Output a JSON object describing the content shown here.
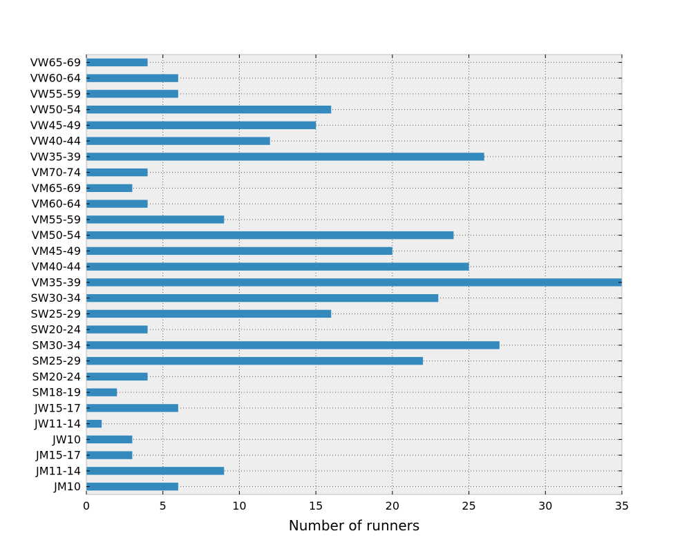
{
  "chart_data": {
    "type": "bar",
    "orientation": "horizontal",
    "title": "",
    "xlabel": "Number of runners",
    "ylabel": "",
    "xlim": [
      0,
      35
    ],
    "xticks": [
      0,
      5,
      10,
      15,
      20,
      25,
      30,
      35
    ],
    "grid": true,
    "bar_color": "#348ABD",
    "background_color": "#EEEEEE",
    "categories": [
      "JM10",
      "JM11-14",
      "JM15-17",
      "JW10",
      "JW11-14",
      "JW15-17",
      "SM18-19",
      "SM20-24",
      "SM25-29",
      "SM30-34",
      "SW20-24",
      "SW25-29",
      "SW30-34",
      "VM35-39",
      "VM40-44",
      "VM45-49",
      "VM50-54",
      "VM55-59",
      "VM60-64",
      "VM65-69",
      "VM70-74",
      "VW35-39",
      "VW40-44",
      "VW45-49",
      "VW50-54",
      "VW55-59",
      "VW60-64",
      "VW65-69"
    ],
    "values": [
      6,
      9,
      3,
      3,
      1,
      6,
      2,
      4,
      22,
      27,
      4,
      16,
      23,
      35,
      25,
      20,
      24,
      9,
      4,
      3,
      4,
      26,
      12,
      15,
      16,
      6,
      6,
      4
    ]
  }
}
